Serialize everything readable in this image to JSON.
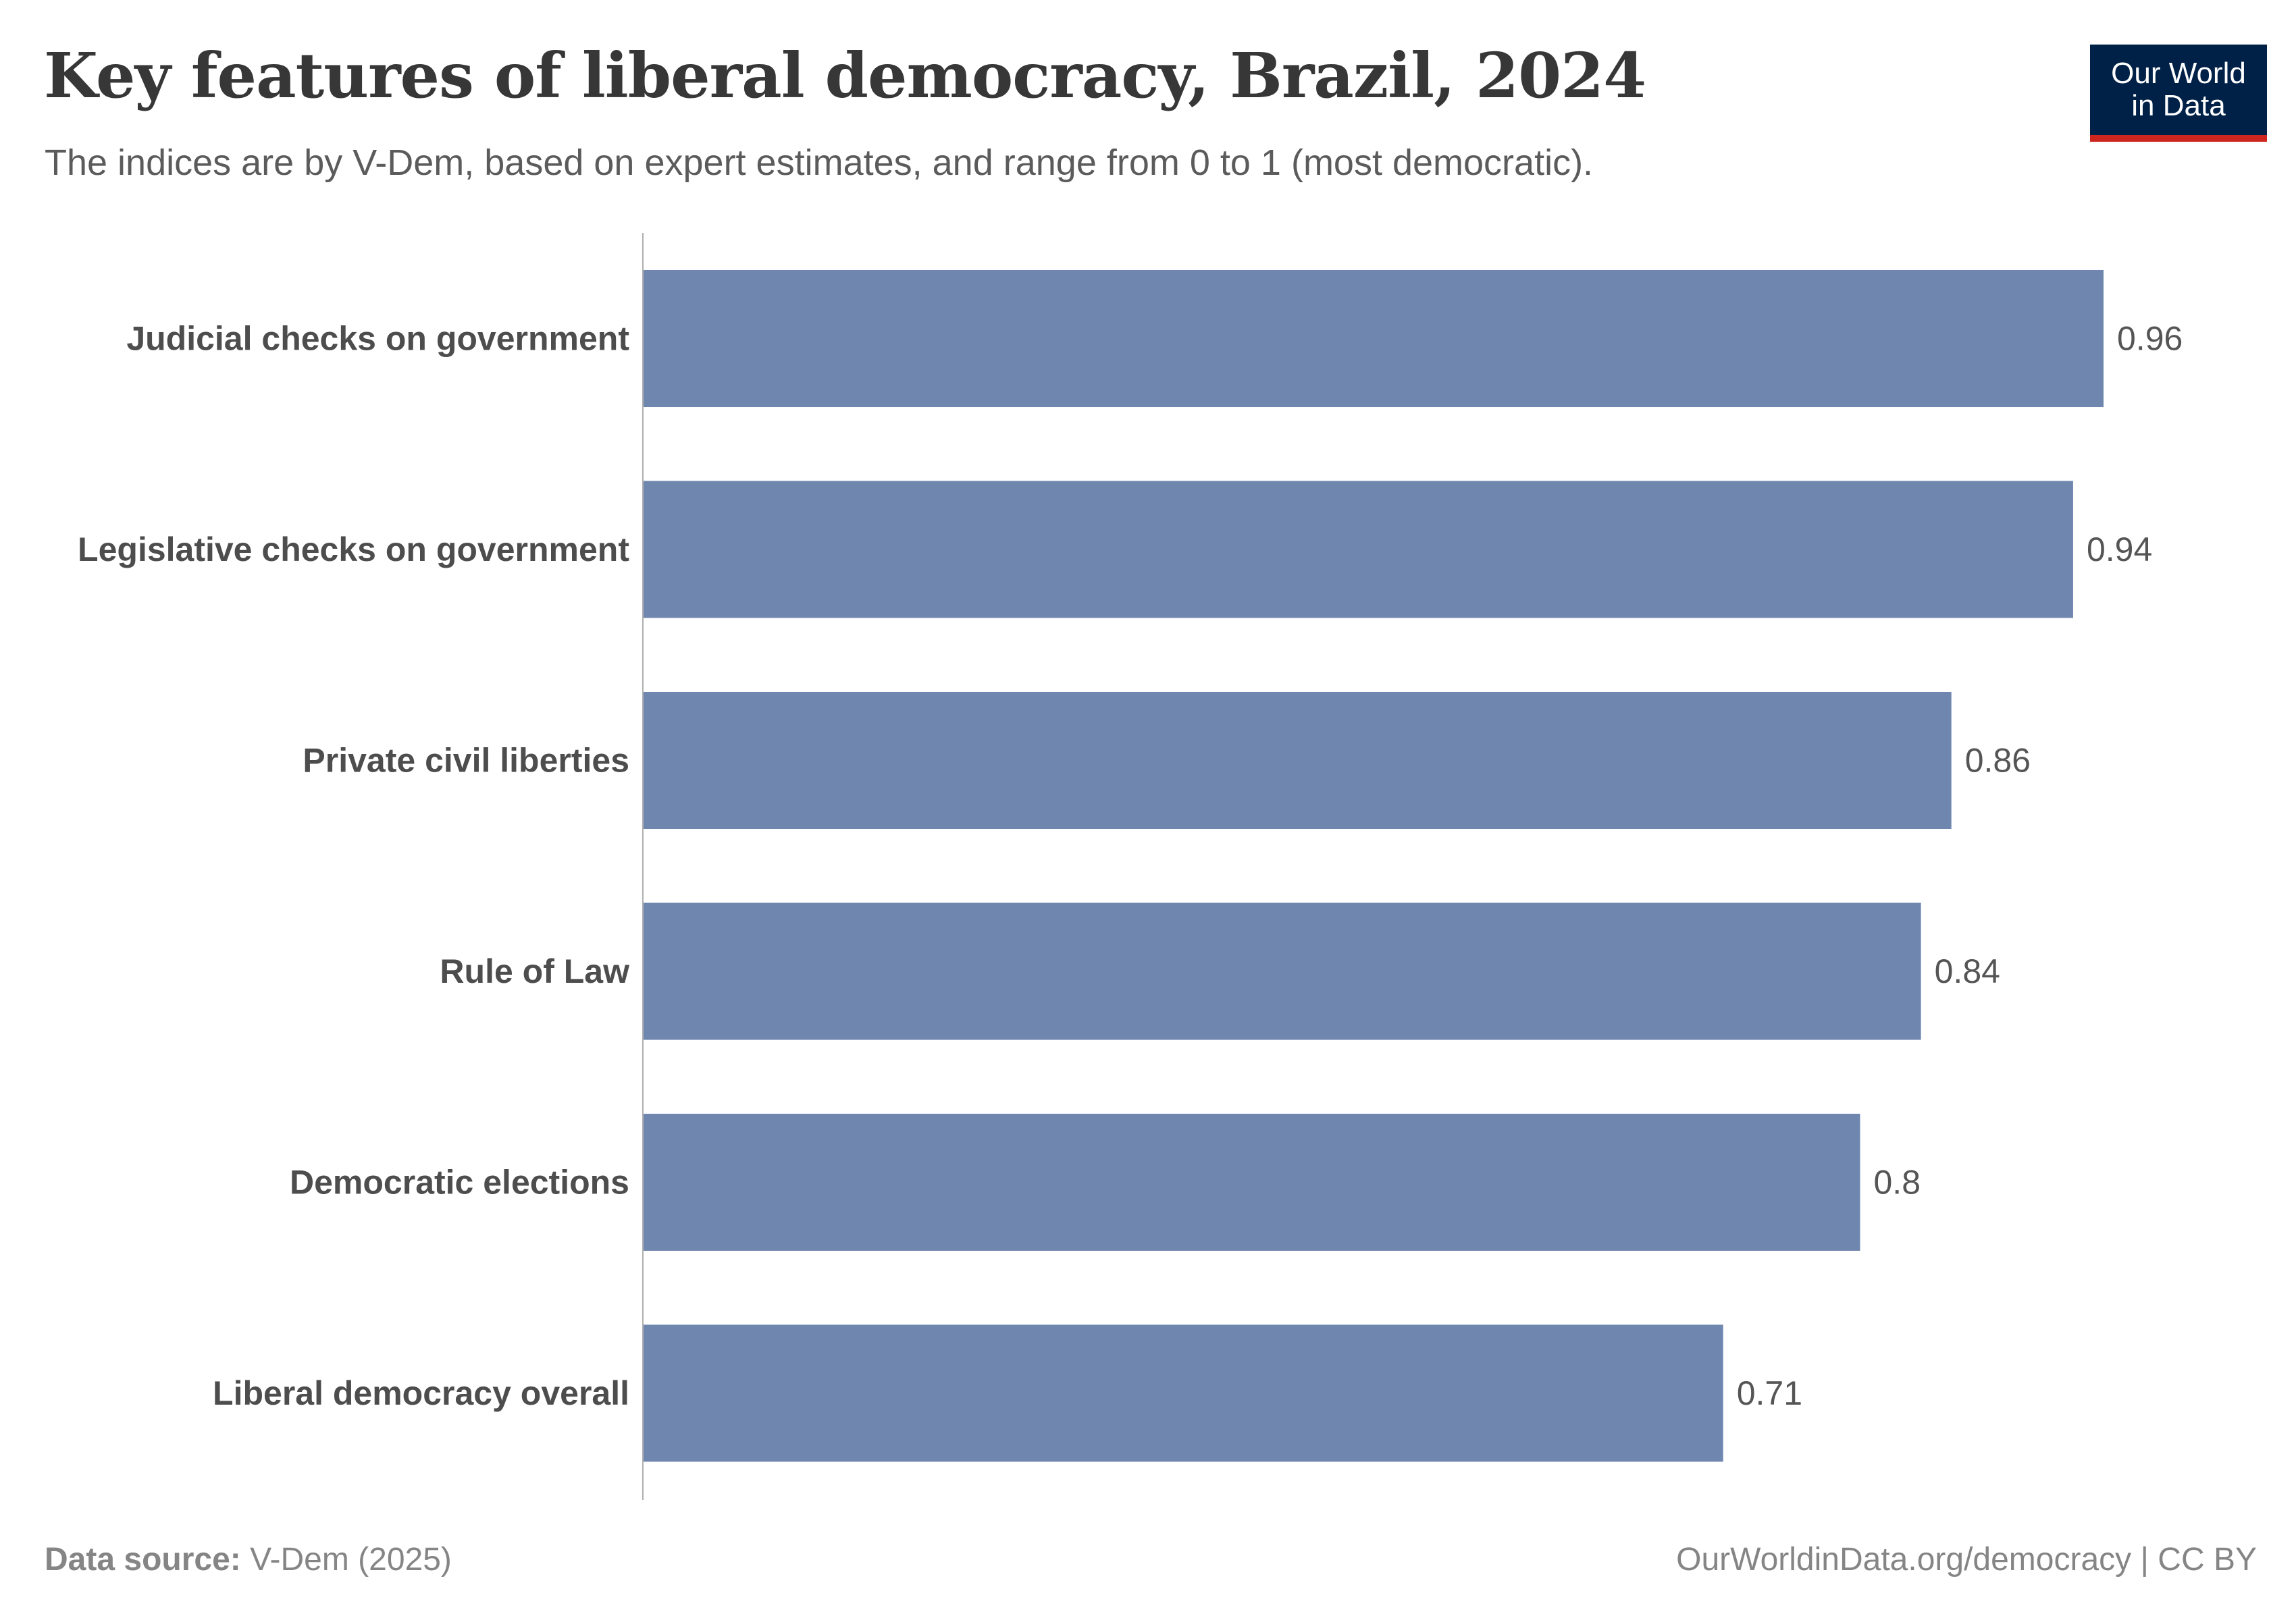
{
  "header": {
    "title": "Key features of liberal democracy, Brazil, 2024",
    "subtitle": "The indices are by V-Dem, based on expert estimates, and range from 0 to 1 (most democratic).",
    "logo_line1": "Our World",
    "logo_line2": "in Data"
  },
  "footer": {
    "source_label": "Data source:",
    "source_value": "V-Dem (2025)",
    "credit": "OurWorldinData.org/democracy | CC BY"
  },
  "colors": {
    "bar": "#6f87af",
    "axis": "#b0b0b0",
    "category_label": "#4d4d4d",
    "value_label": "#555555"
  },
  "chart_data": {
    "type": "bar",
    "orientation": "horizontal",
    "categories": [
      "Judicial checks on government",
      "Legislative checks on government",
      "Private civil liberties",
      "Rule of Law",
      "Democratic elections",
      "Liberal democracy overall"
    ],
    "values": [
      0.96,
      0.94,
      0.86,
      0.84,
      0.8,
      0.71
    ],
    "value_labels": [
      "0.96",
      "0.94",
      "0.86",
      "0.84",
      "0.8",
      "0.71"
    ],
    "xlim": [
      0,
      0.96
    ],
    "grid": false,
    "legend": "none"
  }
}
